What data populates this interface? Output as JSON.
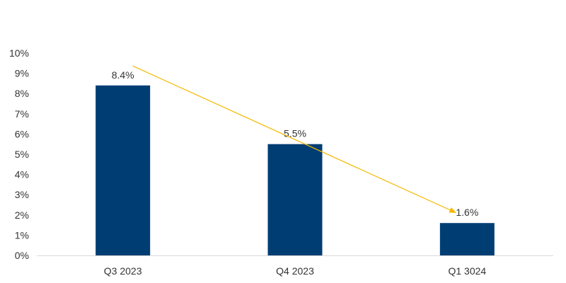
{
  "chart_data": {
    "type": "bar",
    "title": "",
    "xlabel": "",
    "ylabel": "",
    "categories": [
      "Q3 2023",
      "Q4 2023",
      "Q1 3024"
    ],
    "values": [
      8.4,
      5.5,
      1.6
    ],
    "data_labels": [
      "8.4%",
      "5.5%",
      "1.6%"
    ],
    "ylim": [
      0,
      10
    ],
    "y_ticks": [
      0,
      1,
      2,
      3,
      4,
      5,
      6,
      7,
      8,
      9,
      10
    ],
    "y_tick_labels": [
      "0%",
      "1%",
      "2%",
      "3%",
      "4%",
      "5%",
      "6%",
      "7%",
      "8%",
      "9%",
      "10%"
    ],
    "grid": false,
    "legend": "none",
    "colors": {
      "bar": "#003d73",
      "trend_arrow": "#f5b800",
      "axis": "#d9d9d9",
      "text": "#333333"
    },
    "trend_arrow": {
      "from": {
        "category": "Q3 2023",
        "value": 9.4
      },
      "to": {
        "category": "Q1 3024",
        "value": 2.2
      }
    }
  }
}
